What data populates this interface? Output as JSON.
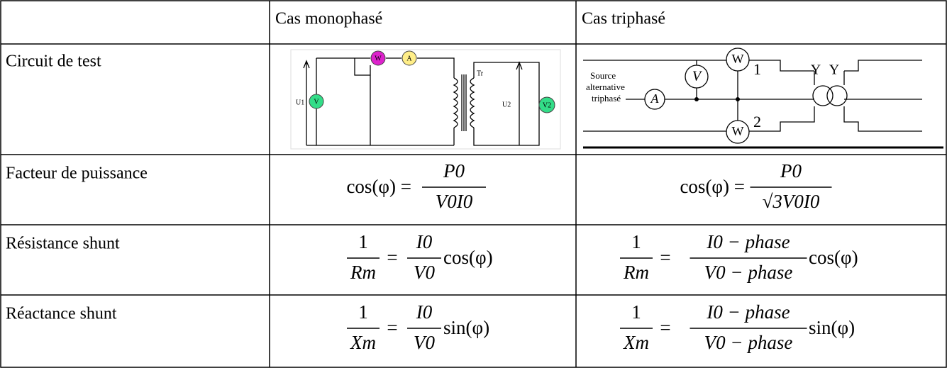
{
  "table": {
    "header": [
      "Cas monophasé",
      "Cas triphasé"
    ],
    "rows": [
      {
        "label": "Circuit de test"
      },
      {
        "label": "Facteur de puissance",
        "mono": {
          "lhs": "cos(φ) =",
          "num": "P0",
          "den": "V0I0"
        },
        "tri": {
          "lhs": "cos(φ) =",
          "num": "P0",
          "den": "√3V0I0"
        }
      },
      {
        "label": "Résistance shunt",
        "mono": {
          "one": "1",
          "var": "Rm",
          "eq": "=",
          "num": "I0",
          "den": "V0",
          "fn": "cos(φ)"
        },
        "tri": {
          "one": "1",
          "var": "Rm",
          "eq": "=",
          "num": "I0 − phase",
          "den": "V0 − phase",
          "fn": "cos(φ)"
        }
      },
      {
        "label": "Réactance shunt",
        "mono": {
          "one": "1",
          "var": "Xm",
          "eq": "=",
          "num": "I0",
          "den": "V0",
          "fn": "sin(φ)"
        },
        "tri": {
          "one": "1",
          "var": "Xm",
          "eq": "=",
          "num": "I0 − phase",
          "den": "V0 − phase",
          "fn": "sin(φ)"
        }
      }
    ]
  },
  "diagrams": {
    "mono": {
      "u1": "U1",
      "v": "V",
      "w": "W",
      "a": "A",
      "tr": "Tr",
      "u2": "U2",
      "v2": "V2"
    },
    "tri": {
      "source": [
        "Source",
        "alternative",
        "triphasé"
      ],
      "v": "V",
      "a": "A",
      "w1": "W",
      "w2": "W",
      "n1": "1",
      "n2": "2",
      "y1": "Y",
      "y2": "Y"
    }
  }
}
